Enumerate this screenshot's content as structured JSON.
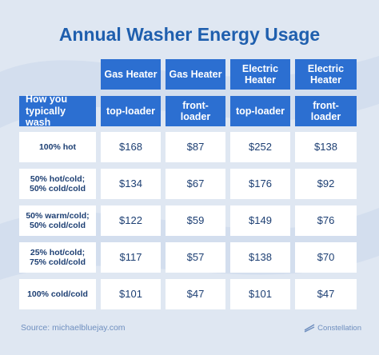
{
  "title": "Annual Washer Energy Usage",
  "table": {
    "header_top": [
      "Gas Heater",
      "Gas Heater",
      "Electric Heater",
      "Electric Heater"
    ],
    "header_sub": [
      "How you typically wash",
      "top-loader",
      "front-loader",
      "top-loader",
      "front-loader"
    ],
    "rows": [
      [
        "100% hot",
        "$168",
        "$87",
        "$252",
        "$138"
      ],
      [
        "50% hot/cold; 50% cold/cold",
        "$134",
        "$67",
        "$176",
        "$92"
      ],
      [
        "50% warm/cold; 50% cold/cold",
        "$122",
        "$59",
        "$149",
        "$76"
      ],
      [
        "25% hot/cold; 75% cold/cold",
        "$117",
        "$57",
        "$138",
        "$70"
      ],
      [
        "100% cold/cold",
        "$101",
        "$47",
        "$101",
        "$47"
      ]
    ]
  },
  "source": "Source: michaelbluejay.com",
  "logo": "Constellation"
}
